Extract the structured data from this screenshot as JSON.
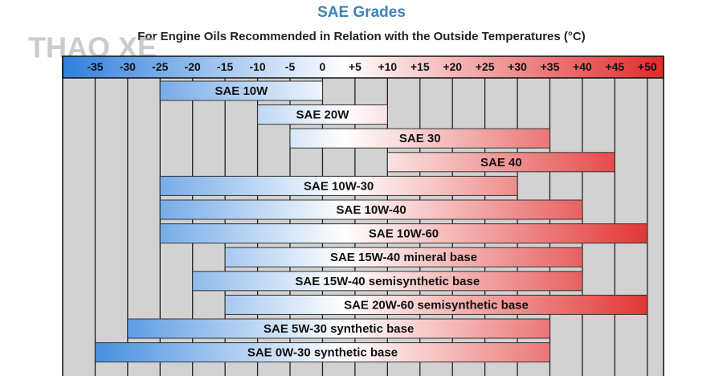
{
  "chart_data": {
    "type": "range_bar",
    "title": "SAE Grades",
    "subtitle": "For Engine Oils Recommended in Relation with the Outside Temperatures (°C)",
    "watermark": "THAO XE",
    "categories": [
      "SAE 10W",
      "SAE 20W",
      "SAE 30",
      "SAE 40",
      "SAE 10W-30",
      "SAE 10W-40",
      "SAE 10W-60",
      "SAE 15W-40 mineral base",
      "SAE 15W-40 semisynthetic base",
      "SAE 20W-60 semisynthetic base",
      "SAE 5W-30 synthetic base",
      "SAE 0W-30 synthetic base"
    ],
    "low": [
      -25,
      -10,
      -5,
      10,
      -25,
      -25,
      -25,
      -15,
      -20,
      -15,
      -30,
      -35
    ],
    "high": [
      0,
      10,
      35,
      45,
      30,
      40,
      50,
      40,
      40,
      50,
      35,
      35
    ],
    "xlim": [
      -40,
      52.5
    ],
    "xticks": [
      -35,
      -30,
      -25,
      -20,
      -15,
      -10,
      -5,
      0,
      {
        "value": 5,
        "label": "+5"
      },
      {
        "value": 10,
        "label": "+10"
      },
      {
        "value": 15,
        "label": "+15"
      },
      {
        "value": 20,
        "label": "+20"
      },
      {
        "value": 25,
        "label": "+25"
      },
      {
        "value": 30,
        "label": "+30"
      },
      {
        "value": 35,
        "label": "+35"
      },
      {
        "value": 40,
        "label": "+40"
      },
      {
        "value": 45,
        "label": "+45"
      },
      {
        "value": 50,
        "label": "+50"
      }
    ],
    "grid": true,
    "colors": {
      "cold": "#2f80dc",
      "neutral": "#ffffff",
      "hot": "#e02b2b"
    }
  }
}
